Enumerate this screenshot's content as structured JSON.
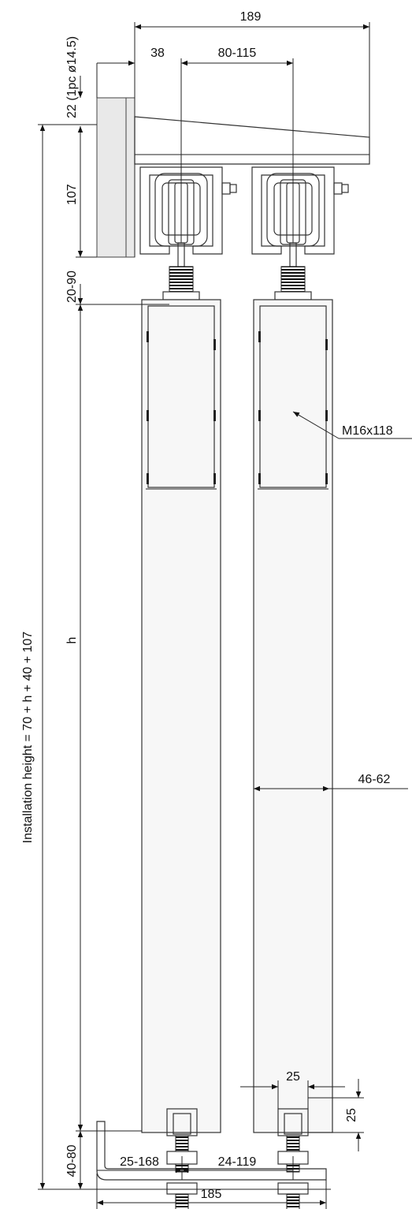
{
  "dimensions": {
    "overall_width": "189",
    "wall_offset": "38",
    "wheel_spacing": "80-115",
    "wall_plate": "22 (1pc ø14.5)",
    "track_height": "107",
    "hanger_gap": "20-90",
    "bolt_label": "M16x118",
    "installation_height": "Installation height = 70 + h + 40 + 107",
    "door_height": "h",
    "door_thickness": "46-62",
    "guide_width": "25",
    "guide_height": "25",
    "floor_gap": "40-80",
    "left_guide_range": "25-168",
    "right_guide_range": "24-119",
    "base_width": "185"
  }
}
